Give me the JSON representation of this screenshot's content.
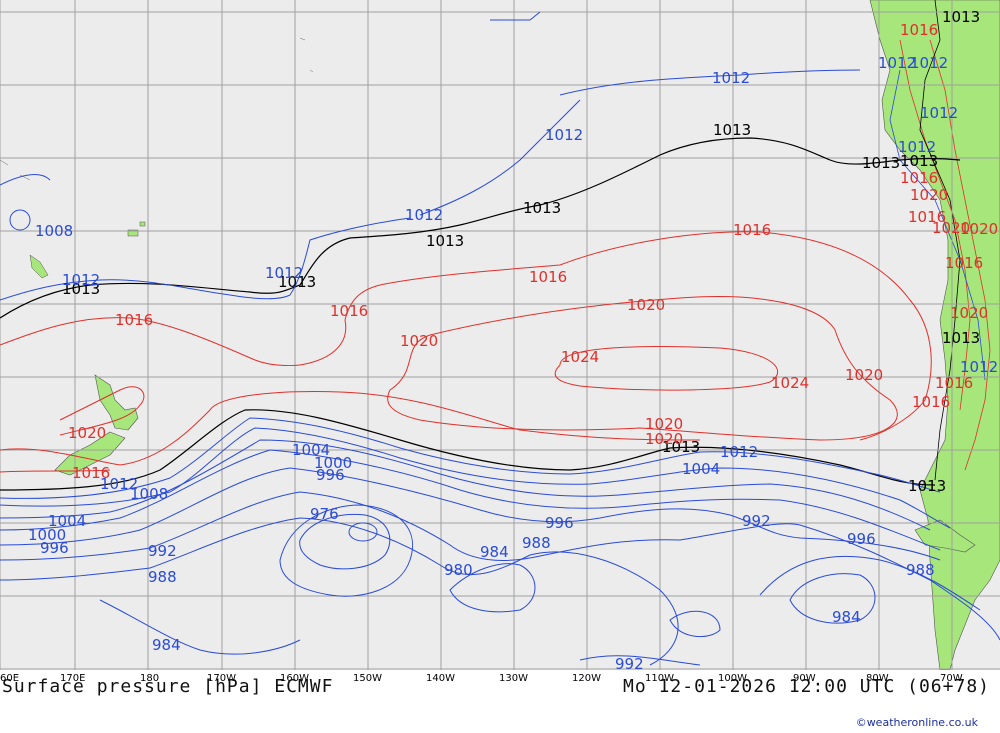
{
  "footer": {
    "title": "Surface pressure [hPa] ECMWF",
    "datetime": "Mo 12-01-2026 12:00 UTC (06+78)",
    "credit": "©weatheronline.co.uk"
  },
  "longitude_labels": [
    "60E",
    "170E",
    "180",
    "170W",
    "160W",
    "150W",
    "140W",
    "130W",
    "120W",
    "110W",
    "100W",
    "90W",
    "80W",
    "70W"
  ],
  "isobar_labels": {
    "blue": [
      "1012",
      "1012",
      "1012",
      "1012",
      "1008",
      "1012",
      "1012",
      "1012",
      "1012",
      "1012",
      "1012",
      "1004",
      "1000",
      "996",
      "1004",
      "1008",
      "1012",
      "1004",
      "1000",
      "996",
      "992",
      "988",
      "984",
      "976",
      "996",
      "988",
      "984",
      "980",
      "992",
      "996",
      "988",
      "984",
      "992",
      "1012"
    ],
    "red": [
      "1016",
      "1016",
      "1016",
      "1016",
      "1020",
      "1020",
      "1024",
      "1024",
      "1020",
      "1020",
      "1016",
      "1020",
      "1016",
      "1020",
      "1016",
      "1020",
      "1016",
      "1020",
      "1020",
      "1016",
      "1016",
      "1016",
      "1020"
    ],
    "black": [
      "1013",
      "1013",
      "1013",
      "1013",
      "1013",
      "1013",
      "1013",
      "1013",
      "1013",
      "1013",
      "1013"
    ]
  },
  "colors": {
    "ocean": "#ececec",
    "land": "#a6e67a",
    "grid": "#a0a0a0",
    "isobar_low": "#2a4bd7",
    "isobar_high": "#e0302b",
    "isobar_normal": "#000000"
  }
}
